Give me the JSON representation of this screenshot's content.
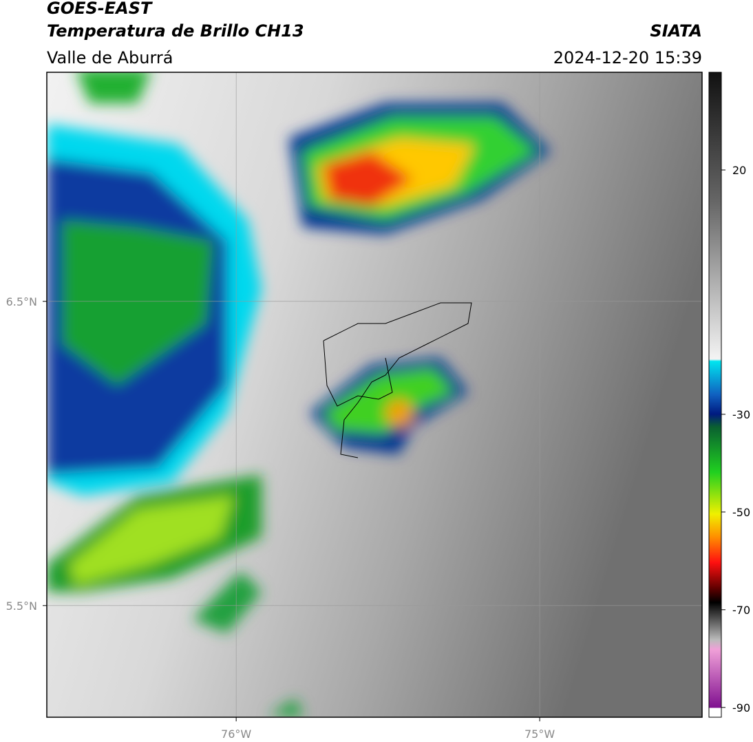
{
  "header": {
    "satellite": "GOES-EAST",
    "product": "Temperatura de Brillo CH13",
    "region": "Valle de Aburrá",
    "source": "SIATA",
    "datetime": "2024-12-20 15:39"
  },
  "map": {
    "xlim": [
      -76.624,
      -74.465
    ],
    "ylim": [
      5.133,
      7.253
    ],
    "xticks": [
      {
        "value": -76,
        "label": "76°W"
      },
      {
        "value": -75,
        "label": "75°W"
      }
    ],
    "yticks": [
      {
        "value": 6.5,
        "label": "6.5°N"
      },
      {
        "value": 5.5,
        "label": "5.5°N"
      }
    ],
    "grid": true
  },
  "colorbar": {
    "lim": [
      -92,
      40
    ],
    "ticks": [
      20,
      -30,
      -50,
      -70,
      -90
    ]
  }
}
